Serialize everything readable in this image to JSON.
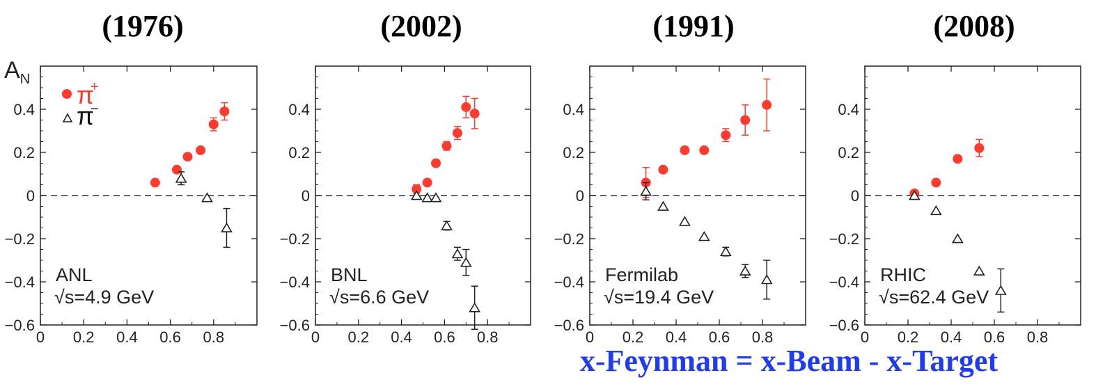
{
  "caption": {
    "text": "x-Feynman = x-Beam - x-Target",
    "color": "#1f3cf0"
  },
  "colors": {
    "pi_plus": "#ff3b2f",
    "pi_minus": "#222222",
    "axis": "#222222",
    "zero_line": "#333333"
  },
  "chart_data": [
    {
      "type": "scatter",
      "title": "(1976)",
      "ylabel": "A_N",
      "legend": {
        "placement": "top-left",
        "entries": [
          "π+",
          "π−"
        ]
      },
      "experiment": "ANL",
      "energy": "√s=4.9 GeV",
      "xlim": [
        0,
        1.0
      ],
      "ylim": [
        -0.6,
        0.6
      ],
      "xticks": [
        0,
        0.2,
        0.4,
        0.6,
        0.8
      ],
      "yticks": [
        -0.6,
        -0.4,
        -0.2,
        0,
        0.2,
        0.4
      ],
      "zero_line": true,
      "series": [
        {
          "name": "π+",
          "marker": "circle",
          "points": [
            {
              "x": 0.53,
              "y": 0.06,
              "err": 0.01
            },
            {
              "x": 0.63,
              "y": 0.12,
              "err": 0.015
            },
            {
              "x": 0.68,
              "y": 0.18,
              "err": 0.01
            },
            {
              "x": 0.74,
              "y": 0.21,
              "err": 0.01
            },
            {
              "x": 0.8,
              "y": 0.33,
              "err": 0.03
            },
            {
              "x": 0.85,
              "y": 0.39,
              "err": 0.04
            }
          ]
        },
        {
          "name": "π−",
          "marker": "triangle",
          "points": [
            {
              "x": 0.65,
              "y": 0.08,
              "err": 0.03
            },
            {
              "x": 0.77,
              "y": -0.01,
              "err": 0.01
            },
            {
              "x": 0.86,
              "y": -0.15,
              "err": 0.09
            }
          ]
        }
      ]
    },
    {
      "type": "scatter",
      "title": "(2002)",
      "experiment": "BNL",
      "energy": "√s=6.6 GeV",
      "xlim": [
        0,
        1.0
      ],
      "ylim": [
        -0.6,
        0.6
      ],
      "xticks": [
        0,
        0.2,
        0.4,
        0.6,
        0.8
      ],
      "yticks": [
        -0.6,
        -0.4,
        -0.2,
        0,
        0.2,
        0.4
      ],
      "zero_line": true,
      "series": [
        {
          "name": "π+",
          "marker": "circle",
          "points": [
            {
              "x": 0.47,
              "y": 0.03,
              "err": 0.02
            },
            {
              "x": 0.52,
              "y": 0.06,
              "err": 0.01
            },
            {
              "x": 0.56,
              "y": 0.15,
              "err": 0.01
            },
            {
              "x": 0.61,
              "y": 0.23,
              "err": 0.02
            },
            {
              "x": 0.66,
              "y": 0.29,
              "err": 0.03
            },
            {
              "x": 0.7,
              "y": 0.41,
              "err": 0.05
            },
            {
              "x": 0.74,
              "y": 0.38,
              "err": 0.07
            }
          ]
        },
        {
          "name": "π−",
          "marker": "triangle",
          "points": [
            {
              "x": 0.47,
              "y": 0.0,
              "err": 0.01
            },
            {
              "x": 0.52,
              "y": -0.01,
              "err": 0.01
            },
            {
              "x": 0.56,
              "y": -0.01,
              "err": 0.01
            },
            {
              "x": 0.61,
              "y": -0.14,
              "err": 0.02
            },
            {
              "x": 0.66,
              "y": -0.27,
              "err": 0.03
            },
            {
              "x": 0.7,
              "y": -0.31,
              "err": 0.06
            },
            {
              "x": 0.74,
              "y": -0.52,
              "err": 0.1
            }
          ]
        }
      ]
    },
    {
      "type": "scatter",
      "title": "(1991)",
      "experiment": "Fermilab",
      "energy": "√s=19.4 GeV",
      "xlim": [
        0,
        1.0
      ],
      "ylim": [
        -0.6,
        0.6
      ],
      "xticks": [
        0,
        0.2,
        0.4,
        0.6,
        0.8
      ],
      "yticks": [
        -0.6,
        -0.4,
        -0.2,
        0,
        0.2,
        0.4
      ],
      "zero_line": true,
      "series": [
        {
          "name": "π+",
          "marker": "circle",
          "points": [
            {
              "x": 0.26,
              "y": 0.06,
              "err": 0.07
            },
            {
              "x": 0.34,
              "y": 0.12,
              "err": 0.01
            },
            {
              "x": 0.44,
              "y": 0.21,
              "err": 0.01
            },
            {
              "x": 0.53,
              "y": 0.21,
              "err": 0.01
            },
            {
              "x": 0.63,
              "y": 0.28,
              "err": 0.03
            },
            {
              "x": 0.72,
              "y": 0.35,
              "err": 0.07
            },
            {
              "x": 0.82,
              "y": 0.42,
              "err": 0.12
            }
          ]
        },
        {
          "name": "π−",
          "marker": "triangle",
          "points": [
            {
              "x": 0.26,
              "y": 0.02,
              "err": 0.04
            },
            {
              "x": 0.34,
              "y": -0.05,
              "err": 0.01
            },
            {
              "x": 0.44,
              "y": -0.12,
              "err": 0.01
            },
            {
              "x": 0.53,
              "y": -0.19,
              "err": 0.01
            },
            {
              "x": 0.63,
              "y": -0.26,
              "err": 0.02
            },
            {
              "x": 0.72,
              "y": -0.35,
              "err": 0.03
            },
            {
              "x": 0.82,
              "y": -0.39,
              "err": 0.09
            }
          ]
        }
      ]
    },
    {
      "type": "scatter",
      "title": "(2008)",
      "experiment": "RHIC",
      "energy": "√s=62.4 GeV",
      "xlim": [
        0,
        1.0
      ],
      "ylim": [
        -0.6,
        0.6
      ],
      "xticks": [
        0,
        0.2,
        0.4,
        0.6,
        0.8
      ],
      "yticks": [
        -0.6,
        -0.4,
        -0.2,
        0,
        0.2,
        0.4
      ],
      "zero_line": true,
      "series": [
        {
          "name": "π+",
          "marker": "circle",
          "points": [
            {
              "x": 0.23,
              "y": 0.01,
              "err": 0.01
            },
            {
              "x": 0.33,
              "y": 0.06,
              "err": 0.01
            },
            {
              "x": 0.43,
              "y": 0.17,
              "err": 0.01
            },
            {
              "x": 0.53,
              "y": 0.22,
              "err": 0.04
            }
          ]
        },
        {
          "name": "π−",
          "marker": "triangle",
          "points": [
            {
              "x": 0.23,
              "y": 0.0,
              "err": 0.01
            },
            {
              "x": 0.33,
              "y": -0.07,
              "err": 0.01
            },
            {
              "x": 0.43,
              "y": -0.2,
              "err": 0.01
            },
            {
              "x": 0.53,
              "y": -0.35,
              "err": 0.01
            },
            {
              "x": 0.63,
              "y": -0.44,
              "err": 0.1
            }
          ]
        }
      ]
    }
  ]
}
